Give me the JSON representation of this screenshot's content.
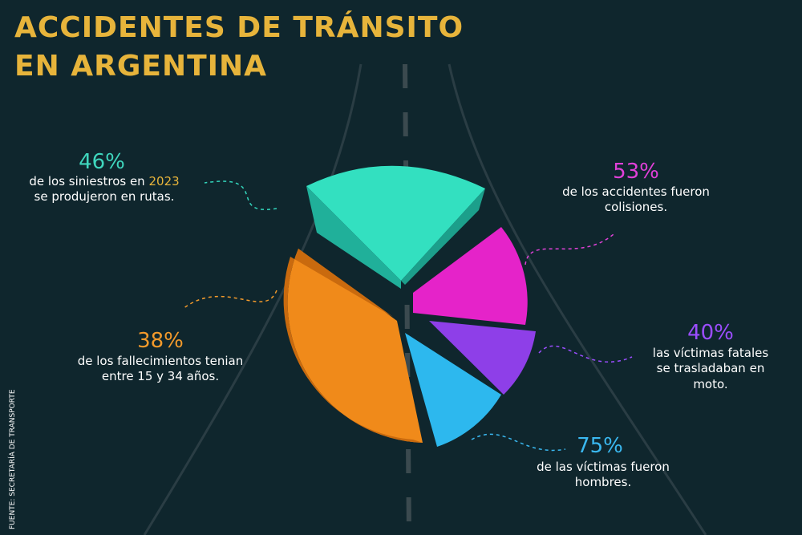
{
  "title": {
    "lines": [
      "ACCIDENTES DE TRÁNSITO",
      "EN ARGENTINA"
    ]
  },
  "callouts": [
    {
      "value": "46%",
      "lines": [
        "de los siniestros en",
        "2023",
        "se produjeron en rutas."
      ]
    },
    {
      "value": "53%",
      "lines": [
        "de los accidentes fueron",
        "colisiones."
      ]
    },
    {
      "value": "38%",
      "lines": [
        "de los fallecimientos  tenian",
        "entre 15 y 34 años."
      ]
    },
    {
      "value": "40%",
      "lines": [
        "las víctimas fatales",
        "se trasladaban en",
        "moto."
      ]
    },
    {
      "value": "75%",
      "lines": [
        "de las víctimas fueron",
        "hombres."
      ]
    }
  ],
  "source": "FUENTE: SECRETARÍA DE TRANSPORTE"
}
